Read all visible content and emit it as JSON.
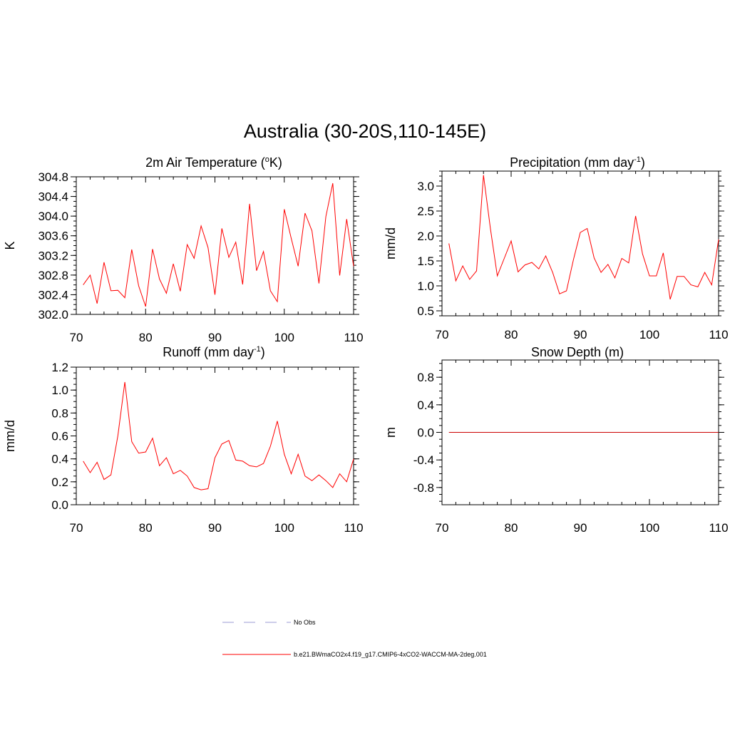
{
  "figure": {
    "title": "Australia (30-20S,110-145E)"
  },
  "chart_data": [
    {
      "type": "line",
      "title": "2m Air Temperature",
      "title_unit": "K",
      "title_unit_prefix": "o",
      "xlabel": "",
      "ylabel": "K",
      "xlim": [
        70,
        110
      ],
      "ylim": [
        302.0,
        304.8
      ],
      "xticks": [
        70,
        80,
        90,
        100,
        110
      ],
      "yticks": [
        302.0,
        302.4,
        302.8,
        303.2,
        303.6,
        304.0,
        304.4,
        304.8
      ],
      "ytick_labels": [
        "302.0",
        "302.4",
        "302.8",
        "303.2",
        "303.6",
        "304.0",
        "304.4",
        "304.8"
      ],
      "yminor": 0.1,
      "x": [
        71,
        72,
        73,
        74,
        75,
        76,
        77,
        78,
        79,
        80,
        81,
        82,
        83,
        84,
        85,
        86,
        87,
        88,
        89,
        90,
        91,
        92,
        93,
        94,
        95,
        96,
        97,
        98,
        99,
        100,
        101,
        102,
        103,
        104,
        105,
        106,
        107,
        108,
        109,
        110
      ],
      "series": [
        {
          "name": "b.e21.BWmaCO2x4.f19_g17.CMIP6-4xCO2-WACCM-MA-2deg.001",
          "color": "#ff0000",
          "values": [
            302.6,
            302.8,
            302.22,
            303.06,
            302.48,
            302.49,
            302.34,
            303.32,
            302.58,
            302.16,
            303.33,
            302.72,
            302.43,
            303.03,
            302.47,
            303.42,
            303.14,
            303.8,
            303.36,
            302.4,
            303.75,
            303.16,
            303.47,
            302.61,
            304.25,
            302.89,
            303.28,
            302.48,
            302.26,
            304.14,
            303.55,
            302.98,
            304.06,
            303.7,
            302.63,
            303.99,
            304.67,
            302.79,
            303.94,
            302.98
          ]
        }
      ]
    },
    {
      "type": "line",
      "title": "Precipitation (mm day",
      "title_sup": "-1",
      "title_close": ")",
      "xlabel": "",
      "ylabel": "mm/d",
      "xlim": [
        70,
        110
      ],
      "ylim": [
        0.4,
        3.3
      ],
      "xticks": [
        70,
        80,
        90,
        100,
        110
      ],
      "yticks": [
        0.5,
        1.0,
        1.5,
        2.0,
        2.5,
        3.0
      ],
      "ytick_labels": [
        "0.5",
        "1.0",
        "1.5",
        "2.0",
        "2.5",
        "3.0"
      ],
      "yminor": 0.1,
      "x": [
        71,
        72,
        73,
        74,
        75,
        76,
        77,
        78,
        79,
        80,
        81,
        82,
        83,
        84,
        85,
        86,
        87,
        88,
        89,
        90,
        91,
        92,
        93,
        94,
        95,
        96,
        97,
        98,
        99,
        100,
        101,
        102,
        103,
        104,
        105,
        106,
        107,
        108,
        109,
        110
      ],
      "series": [
        {
          "name": "b.e21.BWmaCO2x4.f19_g17.CMIP6-4xCO2-WACCM-MA-2deg.001",
          "color": "#ff0000",
          "values": [
            1.85,
            1.1,
            1.4,
            1.13,
            1.3,
            3.22,
            2.15,
            1.2,
            1.55,
            1.9,
            1.28,
            1.42,
            1.47,
            1.34,
            1.6,
            1.27,
            0.84,
            0.9,
            1.52,
            2.07,
            2.15,
            1.56,
            1.27,
            1.43,
            1.16,
            1.55,
            1.46,
            2.4,
            1.64,
            1.2,
            1.2,
            1.66,
            0.73,
            1.19,
            1.19,
            1.02,
            0.98,
            1.27,
            1.02,
            1.93
          ]
        }
      ]
    },
    {
      "type": "line",
      "title": "Runoff (mm day",
      "title_sup": "-1",
      "title_close": ")",
      "xlabel": "",
      "ylabel": "mm/d",
      "xlim": [
        70,
        110
      ],
      "ylim": [
        0.0,
        1.2
      ],
      "xticks": [
        70,
        80,
        90,
        100,
        110
      ],
      "yticks": [
        0.0,
        0.2,
        0.4,
        0.6,
        0.8,
        1.0,
        1.2
      ],
      "ytick_labels": [
        "0.0",
        "0.2",
        "0.4",
        "0.6",
        "0.8",
        "1.0",
        "1.2"
      ],
      "yminor": 0.05,
      "x": [
        71,
        72,
        73,
        74,
        75,
        76,
        77,
        78,
        79,
        80,
        81,
        82,
        83,
        84,
        85,
        86,
        87,
        88,
        89,
        90,
        91,
        92,
        93,
        94,
        95,
        96,
        97,
        98,
        99,
        100,
        101,
        102,
        103,
        104,
        105,
        106,
        107,
        108,
        109,
        110
      ],
      "series": [
        {
          "name": "b.e21.BWmaCO2x4.f19_g17.CMIP6-4xCO2-WACCM-MA-2deg.001",
          "color": "#ff0000",
          "values": [
            0.38,
            0.28,
            0.37,
            0.22,
            0.26,
            0.6,
            1.07,
            0.55,
            0.45,
            0.46,
            0.58,
            0.34,
            0.41,
            0.27,
            0.3,
            0.25,
            0.15,
            0.13,
            0.14,
            0.41,
            0.53,
            0.56,
            0.39,
            0.38,
            0.34,
            0.33,
            0.36,
            0.51,
            0.73,
            0.44,
            0.27,
            0.44,
            0.25,
            0.21,
            0.26,
            0.21,
            0.15,
            0.27,
            0.2,
            0.4
          ]
        }
      ]
    },
    {
      "type": "line",
      "title": "Snow Depth (m)",
      "xlabel": "",
      "ylabel": "m",
      "xlim": [
        70,
        110
      ],
      "ylim": [
        -1.05,
        1.05
      ],
      "xticks": [
        70,
        80,
        90,
        100,
        110
      ],
      "yticks": [
        -0.8,
        -0.4,
        0.0,
        0.4,
        0.8
      ],
      "ytick_labels": [
        "-0.8",
        "-0.4",
        "0.0",
        "0.4",
        "0.8"
      ],
      "yminor": 0.1,
      "x": [
        71,
        110
      ],
      "series": [
        {
          "name": "b.e21.BWmaCO2x4.f19_g17.CMIP6-4xCO2-WACCM-MA-2deg.001",
          "color": "#cc0000",
          "values": [
            0.0,
            0.0
          ]
        }
      ]
    }
  ],
  "legend": {
    "items": [
      {
        "label": "No Obs",
        "color": "#9b9bd6",
        "style": "dashed"
      },
      {
        "label": "b.e21.BWmaCO2x4.f19_g17.CMIP6-4xCO2-WACCM-MA-2deg.001",
        "color": "#ff0000",
        "style": "solid"
      }
    ]
  }
}
